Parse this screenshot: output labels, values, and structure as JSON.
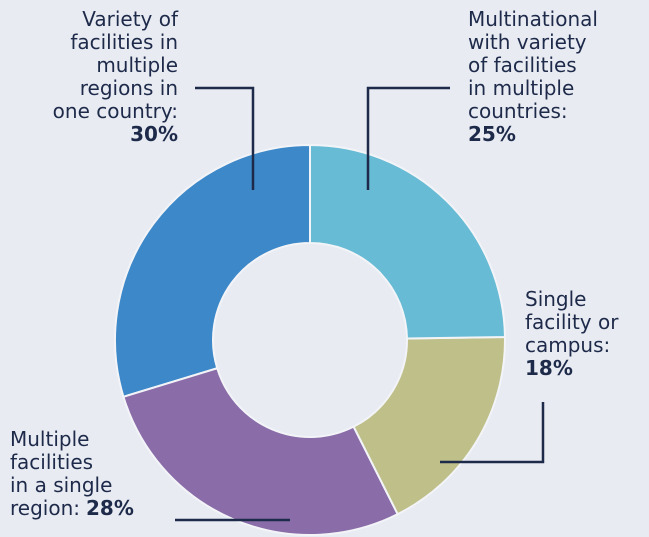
{
  "chart_data": {
    "type": "donut",
    "categories": [
      "Multinational\nwith variety\nof facilities\nin multiple\ncountries:",
      "Single\nfacility or\ncampus:",
      "Multiple\nfacilities\nin a single\nregion:",
      "Variety of\nfacilities in\nmultiple\nregions in\none country:"
    ],
    "values": [
      25,
      18,
      28,
      30
    ],
    "value_labels": [
      "25%",
      "18%",
      "28%",
      "30%"
    ],
    "colors": [
      "#67bbd4",
      "#bfbf8a",
      "#8a6ca8",
      "#3d88c8"
    ]
  }
}
